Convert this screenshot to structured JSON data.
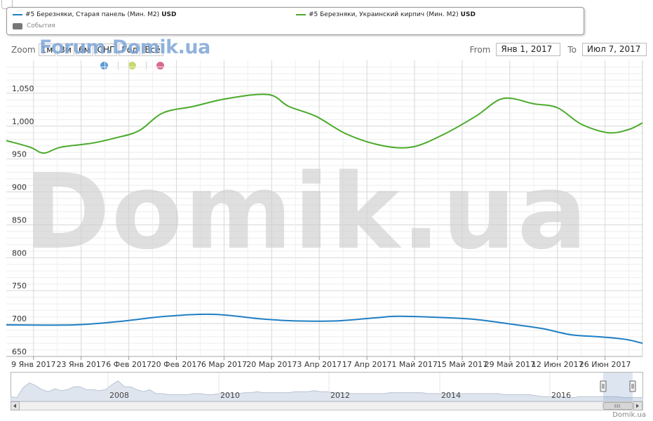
{
  "legend": {
    "series1_label": "#5 Березняки, Старая панель (Мин. М2)",
    "series1_unit": "USD",
    "series2_label": "#5 Березняки, Украинский кирпич (Мин. М2)",
    "series2_unit": "USD",
    "events_label": "События"
  },
  "zoom": {
    "label": "Zoom",
    "buttons": [
      "1м",
      "3м",
      "6м",
      "СНГ",
      "Год",
      "Всё"
    ]
  },
  "watermark_small": "Forum.Domik.ua",
  "watermark_big": "Domik.ua",
  "range": {
    "from_label": "From",
    "from_value": "Янв 1, 2017",
    "to_label": "To",
    "to_value": "Июл 7, 2017"
  },
  "indicator_dots": [
    "#5b9bd5",
    "#c8d96a",
    "#d96a8a"
  ],
  "colors": {
    "series1": "#1f7fc4",
    "series2": "#4aaa2a",
    "grid": "#d8d8d8",
    "navigator_fill": "#c9d3e3"
  },
  "chart_data": {
    "type": "line",
    "title": "",
    "xlabel": "",
    "ylabel": "",
    "ylim": [
      650,
      1100
    ],
    "y_ticks": [
      650,
      700,
      750,
      800,
      850,
      900,
      950,
      "1,000",
      "1,050"
    ],
    "x_tick_labels": [
      "9 Янв 2017",
      "23 Янв 2017",
      "6 Фев 2017",
      "20 Фев 2017",
      "6 Мар 2017",
      "20 Мар 2017",
      "3 Апр 2017",
      "17 Апр 2017",
      "1 Май 2017",
      "15 Май 2017",
      "29 Май 2017",
      "12 Июн 2017",
      "26 Июн 2017"
    ],
    "x_start": "2017-01-01",
    "x_end": "2017-07-07",
    "grid": true,
    "series": [
      {
        "name": "#5 Березняки, Старая панель (Мин. М2)",
        "color": "#1f7fc4",
        "points": [
          [
            "2017-01-01",
            698
          ],
          [
            "2017-01-21",
            698
          ],
          [
            "2017-02-03",
            703
          ],
          [
            "2017-02-17",
            711
          ],
          [
            "2017-03-03",
            714
          ],
          [
            "2017-03-17",
            707
          ],
          [
            "2017-03-27",
            704
          ],
          [
            "2017-04-08",
            704
          ],
          [
            "2017-04-20",
            709
          ],
          [
            "2017-04-27",
            711
          ],
          [
            "2017-05-14",
            708
          ],
          [
            "2017-05-21",
            705
          ],
          [
            "2017-05-31",
            698
          ],
          [
            "2017-06-08",
            692
          ],
          [
            "2017-06-16",
            683
          ],
          [
            "2017-06-24",
            680
          ],
          [
            "2017-07-02",
            676
          ],
          [
            "2017-07-07",
            670
          ]
        ]
      },
      {
        "name": "#5 Березняки, Украинский кирпич (Мин. М2)",
        "color": "#4aaa2a",
        "points": [
          [
            "2017-01-01",
            978
          ],
          [
            "2017-01-08",
            968
          ],
          [
            "2017-01-12",
            959
          ],
          [
            "2017-01-17",
            968
          ],
          [
            "2017-01-26",
            974
          ],
          [
            "2017-02-02",
            982
          ],
          [
            "2017-02-09",
            993
          ],
          [
            "2017-02-16",
            1020
          ],
          [
            "2017-02-25",
            1030
          ],
          [
            "2017-03-07",
            1042
          ],
          [
            "2017-03-19",
            1048
          ],
          [
            "2017-03-25",
            1030
          ],
          [
            "2017-04-02",
            1015
          ],
          [
            "2017-04-11",
            988
          ],
          [
            "2017-04-21",
            971
          ],
          [
            "2017-04-30",
            968
          ],
          [
            "2017-05-09",
            986
          ],
          [
            "2017-05-19",
            1015
          ],
          [
            "2017-05-27",
            1042
          ],
          [
            "2017-06-05",
            1034
          ],
          [
            "2017-06-12",
            1028
          ],
          [
            "2017-06-19",
            1003
          ],
          [
            "2017-06-27",
            990
          ],
          [
            "2017-07-03",
            995
          ],
          [
            "2017-07-07",
            1005
          ]
        ]
      }
    ]
  },
  "navigator": {
    "year_labels": [
      "2008",
      "2010",
      "2012",
      "2014",
      "2016"
    ],
    "series": [
      2,
      1,
      11,
      16,
      13,
      9,
      7,
      10,
      8,
      9,
      12,
      12,
      9,
      9,
      8,
      9,
      14,
      18,
      12,
      12,
      9,
      7,
      9,
      5,
      5,
      4,
      4,
      4,
      4,
      5,
      5,
      4,
      4,
      5,
      5,
      5,
      5,
      6,
      6,
      7,
      6,
      6,
      6,
      6,
      6,
      7,
      7,
      7,
      8,
      7,
      7,
      6,
      6,
      5,
      5,
      5,
      5,
      5,
      5,
      5,
      6,
      6,
      6,
      6,
      6,
      6,
      5,
      5,
      5,
      5,
      5,
      5,
      5,
      5,
      5,
      5,
      5,
      5,
      4,
      4,
      4,
      4,
      4,
      3,
      2,
      2,
      2,
      2,
      1,
      1,
      2,
      2,
      2,
      2,
      2,
      2,
      2,
      1,
      1,
      1,
      1
    ]
  },
  "credits": "Domik.ua"
}
